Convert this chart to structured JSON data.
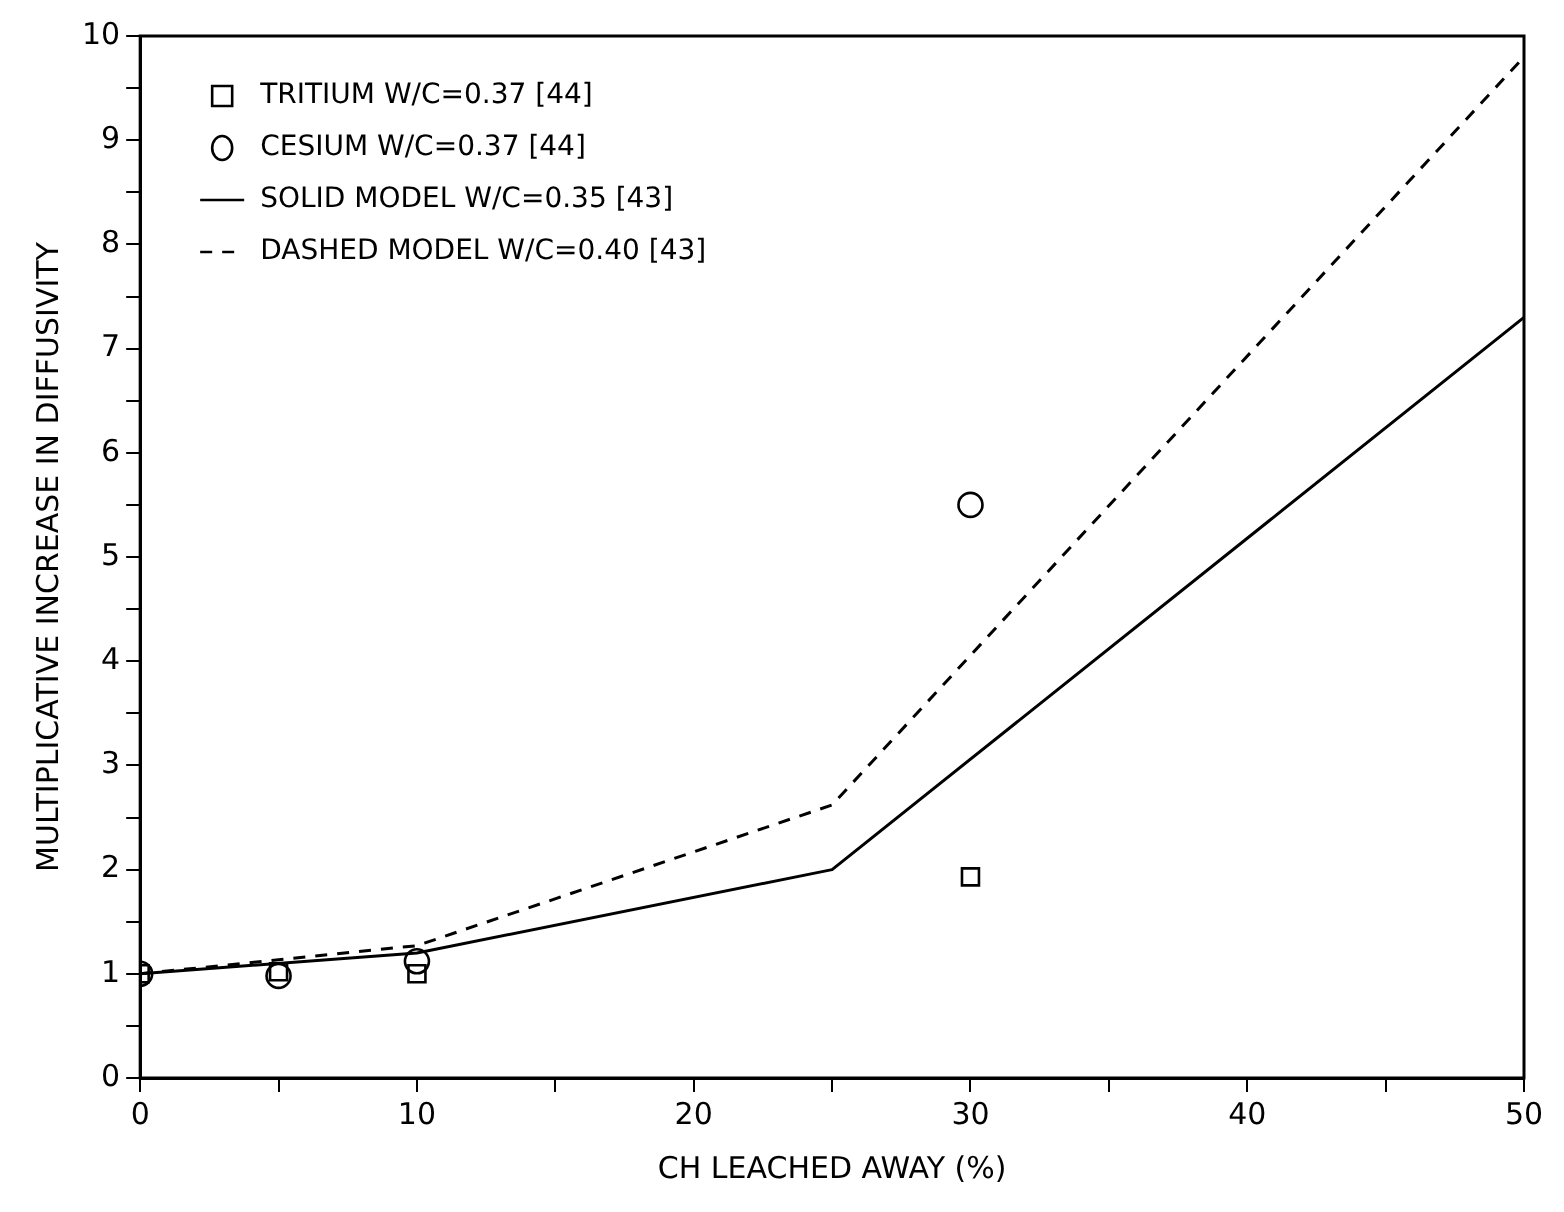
{
  "chart_data": {
    "type": "scatter",
    "xlabel": "CH LEACHED AWAY (%)",
    "ylabel": "MULTIPLICATIVE INCREASE IN DIFFUSIVITY",
    "xlim": [
      0,
      50
    ],
    "xticks": [
      0,
      {
        "value": 5,
        "label": null
      },
      10,
      {
        "value": 15,
        "label": null
      },
      20,
      {
        "value": 25,
        "label": null
      },
      30,
      {
        "value": 35,
        "label": null
      },
      40,
      {
        "value": 45,
        "label": null
      },
      50
    ],
    "ylim": [
      0,
      10
    ],
    "yticks": [
      0,
      {
        "value": 0.5,
        "label": null
      },
      1,
      {
        "value": 1.5,
        "label": null
      },
      2,
      {
        "value": 2.5,
        "label": null
      },
      3,
      {
        "value": 3.5,
        "label": null
      },
      4,
      {
        "value": 4.5,
        "label": null
      },
      5,
      {
        "value": 5.5,
        "label": null
      },
      6,
      {
        "value": 6.5,
        "label": null
      },
      7,
      {
        "value": 7.5,
        "label": null
      },
      8,
      {
        "value": 8.5,
        "label": null
      },
      9,
      {
        "value": 9.5,
        "label": null
      },
      10
    ],
    "grid": false,
    "legend": "top left",
    "series": [
      {
        "name": "TRITIUM W/C=0.37 [44]",
        "type": "scatter",
        "marker": "square",
        "color": "#000000",
        "x": [
          0,
          5,
          10,
          30
        ],
        "values": [
          1.0,
          1.02,
          1.0,
          1.93
        ]
      },
      {
        "name": "CESIUM W/C=0.37 [44]",
        "type": "scatter",
        "marker": "circle",
        "color": "#000000",
        "x": [
          0,
          5,
          10,
          30
        ],
        "values": [
          1.0,
          0.98,
          1.12,
          5.5
        ]
      },
      {
        "name": "SOLID MODEL W/C=0.35 [43]",
        "type": "line",
        "line_style": "solid",
        "color": "#000000",
        "x": [
          0,
          10,
          25,
          50
        ],
        "values": [
          1.0,
          1.2,
          2.0,
          7.3
        ]
      },
      {
        "name": "DASHED MODEL W/C=0.40 [43]",
        "type": "line",
        "line_style": "dashed",
        "color": "#000000",
        "x": [
          0,
          10,
          25,
          50
        ],
        "values": [
          1.0,
          1.27,
          2.62,
          9.8
        ]
      }
    ]
  }
}
